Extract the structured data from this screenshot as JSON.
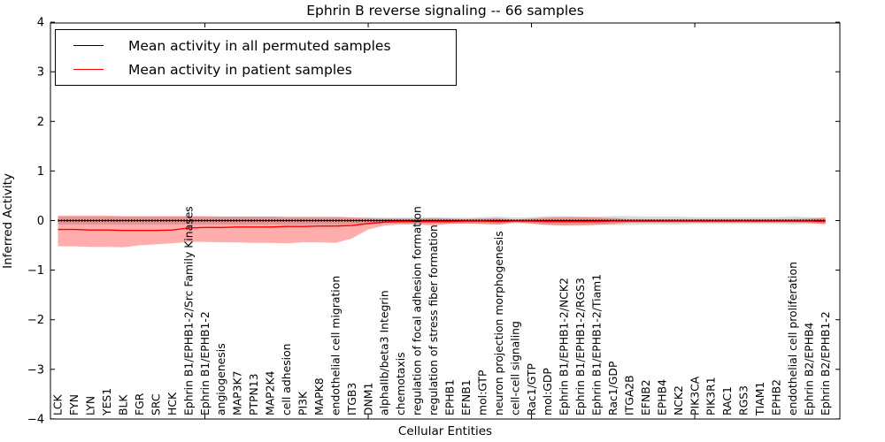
{
  "chart_data": {
    "type": "line",
    "title": "Ephrin B reverse signaling -- 66 samples",
    "xlabel": "Cellular Entities",
    "ylabel": "Inferred Activity",
    "ylim": [
      -4,
      4
    ],
    "ytick_labels": [
      "4",
      "3",
      "2",
      "1",
      "0",
      "−1",
      "−2",
      "−3",
      "−4"
    ],
    "ytick_values": [
      4,
      3,
      2,
      1,
      0,
      -1,
      -2,
      -3,
      -4
    ],
    "grid": false,
    "legend_position": "upper left",
    "categories": [
      "LCK",
      "FYN",
      "LYN",
      "YES1",
      "BLK",
      "FGR",
      "SRC",
      "HCK",
      "Ephrin B1/EPHB1-2/Src Family Kinases",
      "Ephrin B1/EPHB1-2",
      "angiogenesis",
      "MAP3K7",
      "PTPN13",
      "MAP2K4",
      "cell adhesion",
      "PI3K",
      "MAPK8",
      "endothelial cell migration",
      "ITGB3",
      "DNM1",
      "alphaIIb/beta3 Integrin",
      "chemotaxis",
      "regulation of focal adhesion formation",
      "regulation of stress fiber formation",
      "EPHB1",
      "EFNB1",
      "mol:GTP",
      "neuron projection morphogenesis",
      "cell-cell signaling",
      "Rac1/GTP",
      "mol:GDP",
      "Ephrin B1/EPHB1-2/NCK2",
      "Ephrin B1/EPHB1-2/RGS3",
      "Ephrin B1/EPHB1-2/Tiam1",
      "Rac1/GDP",
      "ITGA2B",
      "EFNB2",
      "EPHB4",
      "NCK2",
      "PIK3CA",
      "PIK3R1",
      "RAC1",
      "RGS3",
      "TIAM1",
      "EPHB2",
      "endothelial cell proliferation",
      "Ephrin B2/EPHB4",
      "Ephrin B2/EPHB1-2"
    ],
    "series": [
      {
        "name": "Mean activity in all permuted samples",
        "color": "#000000",
        "values": [
          0,
          0,
          0,
          0,
          0,
          0,
          0,
          0,
          0,
          0,
          0,
          0,
          0,
          0,
          0,
          0,
          0,
          0,
          0,
          0,
          0,
          0,
          0,
          0,
          0,
          0,
          0,
          0,
          0,
          0,
          0,
          0,
          0,
          0,
          0,
          0,
          0,
          0,
          0,
          0,
          0,
          0,
          0,
          0,
          0,
          0,
          0,
          0
        ]
      },
      {
        "name": "Mean activity in patient samples",
        "color": "#ff0000",
        "values": [
          -0.18,
          -0.18,
          -0.19,
          -0.19,
          -0.2,
          -0.2,
          -0.2,
          -0.19,
          -0.15,
          -0.14,
          -0.14,
          -0.13,
          -0.13,
          -0.13,
          -0.12,
          -0.12,
          -0.11,
          -0.11,
          -0.1,
          -0.06,
          -0.03,
          -0.02,
          -0.02,
          -0.02,
          -0.02,
          -0.01,
          -0.01,
          -0.02,
          -0.01,
          -0.01,
          -0.02,
          -0.02,
          -0.02,
          -0.02,
          -0.01,
          -0.01,
          -0.01,
          -0.01,
          -0.01,
          -0.01,
          -0.01,
          -0.01,
          -0.01,
          -0.01,
          -0.01,
          -0.01,
          -0.01,
          -0.02
        ]
      }
    ],
    "bands": [
      {
        "name": "permuted-band",
        "color": "#aaaaaa",
        "opacity": 0.45,
        "upper": [
          0.08,
          0.08,
          0.08,
          0.08,
          0.08,
          0.08,
          0.08,
          0.08,
          0.08,
          0.08,
          0.08,
          0.08,
          0.08,
          0.08,
          0.08,
          0.08,
          0.08,
          0.08,
          0.07,
          0.07,
          0.06,
          0.06,
          0.06,
          0.07,
          0.06,
          0.06,
          0.07,
          0.08,
          0.06,
          0.07,
          0.09,
          0.09,
          0.08,
          0.08,
          0.09,
          0.09,
          0.08,
          0.08,
          0.08,
          0.07,
          0.07,
          0.07,
          0.07,
          0.07,
          0.07,
          0.08,
          0.07,
          0.06
        ],
        "lower": [
          -0.08,
          -0.08,
          -0.08,
          -0.08,
          -0.08,
          -0.08,
          -0.08,
          -0.08,
          -0.08,
          -0.08,
          -0.08,
          -0.08,
          -0.08,
          -0.08,
          -0.08,
          -0.08,
          -0.08,
          -0.08,
          -0.07,
          -0.07,
          -0.06,
          -0.06,
          -0.06,
          -0.07,
          -0.06,
          -0.06,
          -0.07,
          -0.08,
          -0.06,
          -0.07,
          -0.09,
          -0.09,
          -0.08,
          -0.08,
          -0.09,
          -0.09,
          -0.08,
          -0.08,
          -0.08,
          -0.07,
          -0.07,
          -0.07,
          -0.07,
          -0.07,
          -0.07,
          -0.08,
          -0.07,
          -0.06
        ]
      },
      {
        "name": "patient-band",
        "color": "#ff0000",
        "opacity": 0.32,
        "upper": [
          0.1,
          0.1,
          0.1,
          0.1,
          0.09,
          0.09,
          0.09,
          0.09,
          0.09,
          0.09,
          0.08,
          0.08,
          0.08,
          0.08,
          0.07,
          0.07,
          0.07,
          0.07,
          0.06,
          0.05,
          0.04,
          0.04,
          0.04,
          0.05,
          0.04,
          0.03,
          0.04,
          0.05,
          0.02,
          0.04,
          0.06,
          0.07,
          0.07,
          0.06,
          0.05,
          0.03,
          0.03,
          0.03,
          0.03,
          0.03,
          0.03,
          0.03,
          0.03,
          0.03,
          0.03,
          0.03,
          0.04,
          0.06
        ],
        "lower": [
          -0.52,
          -0.52,
          -0.53,
          -0.53,
          -0.54,
          -0.5,
          -0.48,
          -0.46,
          -0.43,
          -0.43,
          -0.44,
          -0.44,
          -0.45,
          -0.45,
          -0.46,
          -0.44,
          -0.44,
          -0.45,
          -0.36,
          -0.18,
          -0.1,
          -0.08,
          -0.08,
          -0.1,
          -0.07,
          -0.06,
          -0.07,
          -0.08,
          -0.03,
          -0.06,
          -0.09,
          -0.1,
          -0.1,
          -0.09,
          -0.07,
          -0.04,
          -0.04,
          -0.04,
          -0.04,
          -0.04,
          -0.04,
          -0.04,
          -0.04,
          -0.04,
          -0.04,
          -0.04,
          -0.05,
          -0.08
        ]
      }
    ],
    "legend": {
      "entries": [
        {
          "label": "Mean activity in all permuted samples",
          "color": "#000000"
        },
        {
          "label": "Mean activity in patient samples",
          "color": "#ff0000"
        }
      ]
    },
    "colors": {
      "background": "#ffffff",
      "frame": "#000000",
      "zero_line": "#000000"
    }
  }
}
